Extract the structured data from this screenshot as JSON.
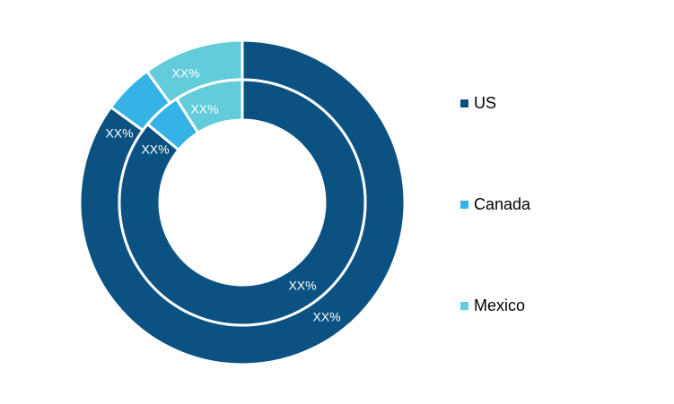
{
  "chart_data": {
    "type": "pie",
    "title": "",
    "categories": [
      "US",
      "Canada",
      "Mexico"
    ],
    "colors": [
      "#0b5283",
      "#35b2e6",
      "#62ccdb"
    ],
    "series": [
      {
        "ring": "outer",
        "values": [
          85,
          5,
          10
        ],
        "labels": [
          "XX%",
          "XX%",
          "XX%"
        ]
      },
      {
        "ring": "inner",
        "values": [
          86,
          5,
          9
        ],
        "labels": [
          "XX%",
          "XX%",
          "XX%"
        ]
      }
    ],
    "legend_position": "right"
  }
}
